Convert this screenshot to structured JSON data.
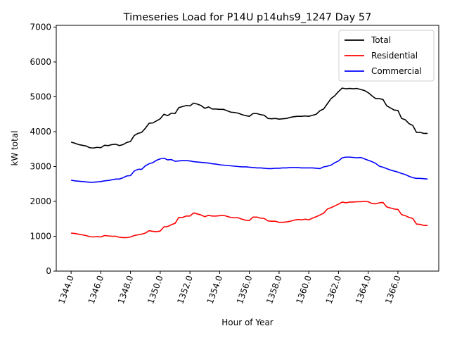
{
  "chart_data": {
    "type": "line",
    "title": "Timeseries Load for P14U p14uhs9_1247  Day 57",
    "xlabel": "Hour of Year",
    "ylabel": "kW total",
    "xlim": [
      1343.0,
      1368.75
    ],
    "ylim": [
      0,
      7050
    ],
    "xticks": [
      1344,
      1346,
      1348,
      1350,
      1352,
      1354,
      1356,
      1358,
      1360,
      1362,
      1364,
      1366
    ],
    "xtick_labels": [
      "1344.0",
      "1346.0",
      "1348.0",
      "1350.0",
      "1352.0",
      "1354.0",
      "1356.0",
      "1358.0",
      "1360.0",
      "1362.0",
      "1364.0",
      "1366.0"
    ],
    "yticks": [
      0,
      1000,
      2000,
      3000,
      4000,
      5000,
      6000,
      7000
    ],
    "ytick_labels": [
      "0",
      "1000",
      "2000",
      "3000",
      "4000",
      "5000",
      "6000",
      "7000"
    ],
    "legend_position": "top-right",
    "x_start": 1344.0,
    "x_step": 0.25,
    "series": [
      {
        "name": "Total",
        "color": "#000000",
        "values": [
          3700,
          3670,
          3630,
          3610,
          3590,
          3540,
          3530,
          3550,
          3540,
          3610,
          3600,
          3630,
          3640,
          3600,
          3630,
          3690,
          3720,
          3890,
          3950,
          3980,
          4100,
          4240,
          4250,
          4310,
          4370,
          4500,
          4460,
          4530,
          4520,
          4690,
          4720,
          4750,
          4740,
          4820,
          4790,
          4750,
          4670,
          4710,
          4650,
          4650,
          4640,
          4640,
          4600,
          4560,
          4550,
          4530,
          4490,
          4460,
          4440,
          4520,
          4520,
          4490,
          4470,
          4380,
          4370,
          4380,
          4360,
          4370,
          4380,
          4410,
          4430,
          4440,
          4440,
          4450,
          4440,
          4470,
          4500,
          4600,
          4650,
          4800,
          4950,
          5030,
          5150,
          5250,
          5230,
          5240,
          5230,
          5240,
          5210,
          5180,
          5120,
          5030,
          4950,
          4950,
          4920,
          4740,
          4680,
          4620,
          4610,
          4380,
          4340,
          4230,
          4180,
          3980,
          3980,
          3950,
          3950
        ]
      },
      {
        "name": "Residential",
        "color": "#ff0000",
        "values": [
          1090,
          1080,
          1060,
          1040,
          1020,
          990,
          980,
          990,
          980,
          1020,
          1010,
          1000,
          1000,
          970,
          960,
          960,
          980,
          1020,
          1040,
          1060,
          1090,
          1160,
          1140,
          1130,
          1150,
          1270,
          1280,
          1330,
          1370,
          1540,
          1540,
          1580,
          1580,
          1670,
          1640,
          1610,
          1560,
          1600,
          1580,
          1580,
          1590,
          1600,
          1570,
          1540,
          1530,
          1530,
          1490,
          1460,
          1450,
          1550,
          1550,
          1520,
          1510,
          1440,
          1430,
          1430,
          1400,
          1400,
          1410,
          1430,
          1460,
          1480,
          1470,
          1490,
          1470,
          1520,
          1560,
          1610,
          1660,
          1780,
          1820,
          1870,
          1920,
          1980,
          1960,
          1980,
          1980,
          1990,
          1990,
          2000,
          1990,
          1940,
          1930,
          1960,
          1970,
          1840,
          1810,
          1780,
          1770,
          1620,
          1590,
          1540,
          1510,
          1350,
          1340,
          1310,
          1310
        ]
      },
      {
        "name": "Commercial",
        "color": "#0000ff",
        "values": [
          2610,
          2590,
          2580,
          2570,
          2560,
          2550,
          2550,
          2560,
          2570,
          2590,
          2600,
          2620,
          2640,
          2640,
          2680,
          2730,
          2740,
          2870,
          2920,
          2920,
          3020,
          3080,
          3110,
          3180,
          3220,
          3240,
          3190,
          3200,
          3150,
          3160,
          3170,
          3170,
          3160,
          3140,
          3130,
          3120,
          3110,
          3100,
          3080,
          3070,
          3050,
          3040,
          3030,
          3020,
          3010,
          3000,
          2990,
          2990,
          2980,
          2970,
          2960,
          2960,
          2950,
          2940,
          2940,
          2950,
          2950,
          2960,
          2960,
          2970,
          2970,
          2970,
          2960,
          2960,
          2960,
          2960,
          2950,
          2940,
          2990,
          3010,
          3040,
          3110,
          3160,
          3250,
          3270,
          3270,
          3260,
          3250,
          3260,
          3220,
          3180,
          3140,
          3090,
          3010,
          2980,
          2940,
          2900,
          2870,
          2840,
          2800,
          2770,
          2720,
          2680,
          2660,
          2660,
          2650,
          2640
        ]
      }
    ]
  }
}
